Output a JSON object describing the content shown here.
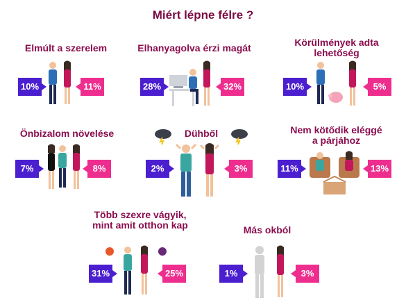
{
  "title": "Miért lépne félre ?",
  "colors": {
    "title": "#7a0b43",
    "category": "#8a0d4e",
    "men": "#4b1fd0",
    "women": "#ee2e8e"
  },
  "categories": [
    {
      "label": "Elmúlt a szerelem",
      "men": "10%",
      "women": "11%"
    },
    {
      "label": "Elhanyagolva érzi magát",
      "men": "28%",
      "women": "32%"
    },
    {
      "label_lines": [
        "Körülmények adta",
        "lehetőség"
      ],
      "men": "10%",
      "women": "5%"
    },
    {
      "label": "Önbizalom növelése",
      "men": "7%",
      "women": "8%"
    },
    {
      "label": "Dühből",
      "men": "2%",
      "women": "3%"
    },
    {
      "label_lines": [
        "Nem kötődik eléggé",
        "a párjához"
      ],
      "men": "11%",
      "women": "13%"
    },
    {
      "label_lines": [
        "Több szexre vágyik,",
        "mint amit otthon kap"
      ],
      "men": "31%",
      "women": "25%"
    },
    {
      "label": "Más okból",
      "men": "1%",
      "women": "3%"
    }
  ]
}
